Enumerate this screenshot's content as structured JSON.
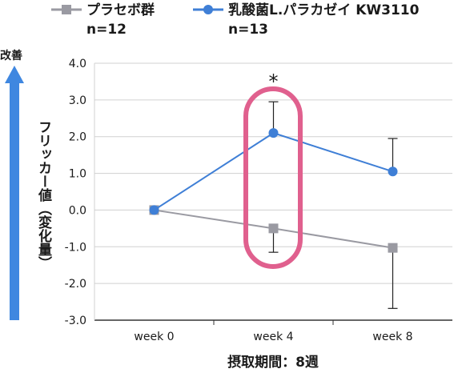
{
  "chart_data": {
    "type": "line",
    "categories": [
      "week 0",
      "week 4",
      "week 8"
    ],
    "ylim": [
      -3.0,
      4.0
    ],
    "y_ticks": [
      "4.0",
      "3.0",
      "2.0",
      "1.0",
      "0.0",
      "-1.0",
      "-2.0",
      "-3.0"
    ],
    "xlabel": "摂取期間：8週",
    "ylabel": "フリッカー値（変化量）",
    "direction_label": "改善",
    "grid": true,
    "legend_position": "top",
    "significance": {
      "category": "week 4",
      "text": "*"
    },
    "series": [
      {
        "name": "プラセボ群",
        "n_label": "n=12",
        "color": "#9a9aa2",
        "marker": "square",
        "values": [
          0.0,
          -0.5,
          -1.03
        ],
        "error_up": [
          0.0,
          0.0,
          0.0
        ],
        "error_down": [
          0.0,
          0.65,
          1.65
        ]
      },
      {
        "name": "乳酸菌L.パラカゼイ KW3110",
        "n_label": "n=13",
        "color": "#3f7fd6",
        "marker": "circle",
        "values": [
          0.0,
          2.1,
          1.05
        ],
        "error_up": [
          0.0,
          0.85,
          0.9
        ],
        "error_down": [
          0.0,
          0.0,
          0.0
        ]
      }
    ],
    "highlight_color": "#e0608e",
    "arrow_color": "#3f87e0"
  }
}
